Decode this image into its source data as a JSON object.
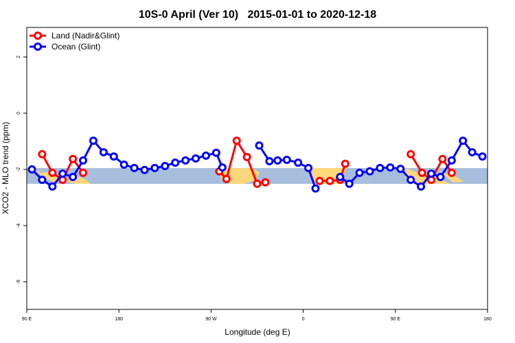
{
  "chart_data": {
    "type": "line",
    "title": "10S-0 April (Ver 10)   2015-01-01 to 2020-12-18",
    "xlabel": "Longitude (deg E)",
    "ylabel": "XCO2 - MLO trend (ppm)",
    "xlim": [
      90,
      540
    ],
    "xticks": [
      {
        "value": 90,
        "label": "90 E"
      },
      180,
      {
        "value": 270,
        "label": "90 W"
      },
      {
        "value": 360,
        "label": "0"
      },
      {
        "value": 450,
        "label": "90 E"
      },
      {
        "value": 540,
        "label": "180"
      }
    ],
    "ylim": [
      -6.98,
      3.05
    ],
    "yticks": [
      -6,
      -4,
      -2,
      0,
      2
    ],
    "legend": "top-left",
    "series": [
      {
        "name": "Land (Nadir&Glint)",
        "color": "#ff0000",
        "x": [
          105,
          115,
          125,
          135,
          145,
          200,
          278,
          285,
          295,
          305,
          315,
          323,
          340,
          376,
          386,
          396,
          401,
          420,
          465,
          476,
          485,
          496,
          505
        ],
        "values": [
          -1.46,
          -2.12,
          -2.37,
          -1.63,
          -2.12,
          null,
          -2.07,
          -2.34,
          -0.98,
          -1.56,
          -2.51,
          -2.46,
          null,
          -2.41,
          -2.41,
          -2.37,
          -1.8,
          null,
          -1.46,
          -2.12,
          -2.37,
          -1.63,
          -2.12
        ]
      },
      {
        "name": "Ocean (Glint)",
        "color": "#0000ff",
        "x": [
          95,
          105,
          115,
          125,
          135,
          145,
          155,
          165,
          175,
          185,
          195,
          205,
          215,
          225,
          235,
          245,
          255,
          265,
          275,
          281,
          300,
          317,
          327,
          335,
          344,
          355,
          365,
          372,
          380,
          396,
          405,
          415,
          425,
          435,
          445,
          455,
          465,
          475,
          485,
          494,
          505,
          516,
          525,
          535
        ],
        "values": [
          -2.0,
          -2.37,
          -2.61,
          -2.15,
          -2.27,
          -1.68,
          -0.98,
          -1.39,
          -1.54,
          -1.83,
          -1.95,
          -2.02,
          -1.95,
          -1.88,
          -1.76,
          -1.68,
          -1.61,
          -1.51,
          -1.41,
          -1.93,
          null,
          -1.15,
          -1.71,
          -1.68,
          -1.66,
          -1.76,
          -1.95,
          -2.68,
          null,
          -2.27,
          -2.51,
          -2.12,
          -2.07,
          -1.95,
          -1.93,
          -1.98,
          -2.37,
          -2.61,
          -2.15,
          -2.27,
          -1.68,
          -0.98,
          -1.39,
          -1.54
        ]
      }
    ]
  }
}
